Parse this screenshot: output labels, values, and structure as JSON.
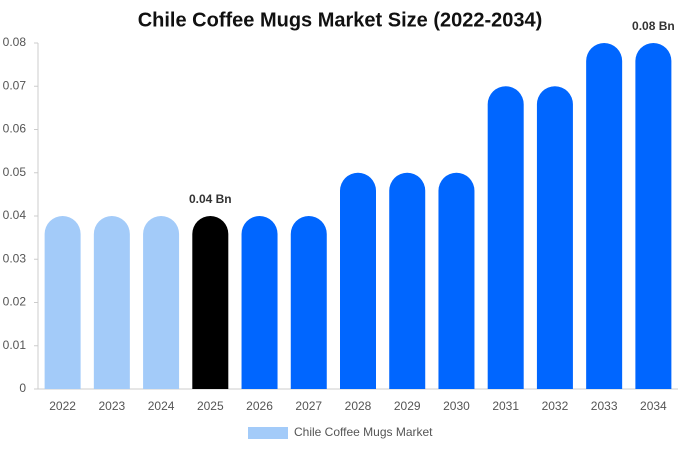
{
  "chart_data": {
    "type": "bar",
    "title": "Chile Coffee Mugs Market Size (2022-2034)",
    "categories": [
      "2022",
      "2023",
      "2024",
      "2025",
      "2026",
      "2027",
      "2028",
      "2029",
      "2030",
      "2031",
      "2032",
      "2033",
      "2034"
    ],
    "series": [
      {
        "name": "Chile Coffee Mugs Market",
        "color": "#a3cbf9",
        "colors": [
          "#a3cbf9",
          "#a3cbf9",
          "#a3cbf9",
          "#000000",
          "#0066ff",
          "#0066ff",
          "#0066ff",
          "#0066ff",
          "#0066ff",
          "#0066ff",
          "#0066ff",
          "#0066ff",
          "#0066ff"
        ],
        "values": [
          0.04,
          0.04,
          0.04,
          0.04,
          0.04,
          0.04,
          0.05,
          0.05,
          0.05,
          0.07,
          0.07,
          0.08,
          0.08
        ],
        "value_labels": [
          null,
          null,
          null,
          "0.04 Bn",
          null,
          null,
          null,
          null,
          null,
          null,
          null,
          null,
          "0.08 Bn"
        ]
      }
    ],
    "ylim": [
      0,
      0.08
    ],
    "yticks": [
      0,
      0.01,
      0.02,
      0.03,
      0.04,
      0.05,
      0.06,
      0.07,
      0.08
    ],
    "grid": false
  }
}
